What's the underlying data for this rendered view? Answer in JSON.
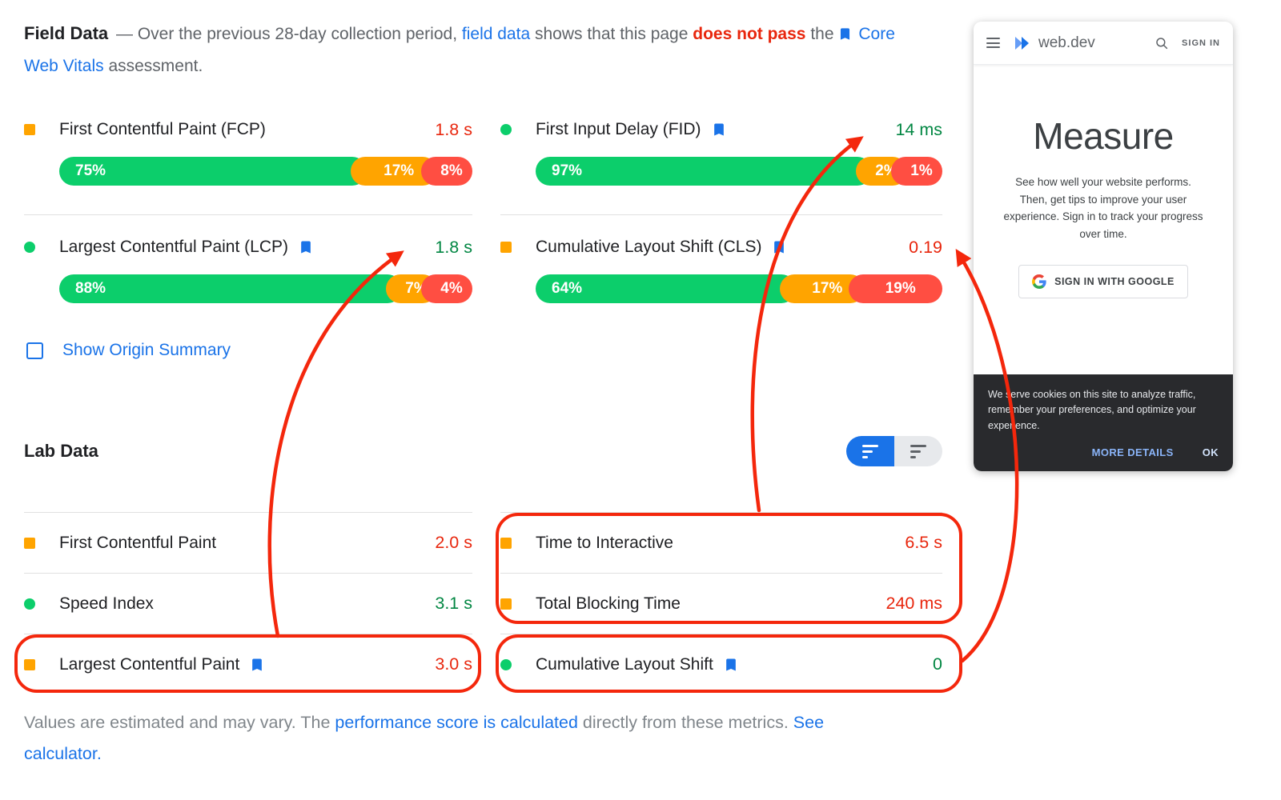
{
  "colors": {
    "red": "#e8260d",
    "orange": "#e8710a",
    "green": "#018642",
    "blue": "#1a73e8",
    "annotation_red": "#f4270c",
    "bar_green": "#0cce6b",
    "bar_orange": "#ffa400",
    "bar_red": "#ff4e42"
  },
  "field_section": {
    "title": "Field Data",
    "desc": {
      "dash": "— Over the previous 28-day collection period,",
      "link1": "field data",
      "mid": "shows that this page",
      "fail": "does not pass",
      "the": "the",
      "link2": "Core Web Vitals",
      "end": "assessment."
    },
    "metrics": [
      {
        "name": "First Contentful Paint (FCP)",
        "icon": "square",
        "bookmark": false,
        "value": "1.8 s",
        "value_color": "red",
        "dist": [
          {
            "label": "75%",
            "pct": 75,
            "color": "green"
          },
          {
            "label": "17%",
            "pct": 17,
            "color": "orange"
          },
          {
            "label": "8%",
            "pct": 8,
            "color": "red"
          }
        ]
      },
      {
        "name": "First Input Delay (FID)",
        "icon": "circle",
        "bookmark": true,
        "value": "14 ms",
        "value_color": "green",
        "dist": [
          {
            "label": "97%",
            "pct": 97,
            "color": "green"
          },
          {
            "label": "2%",
            "pct": 2,
            "color": "orange"
          },
          {
            "label": "1%",
            "pct": 1,
            "color": "red"
          }
        ]
      },
      {
        "name": "Largest Contentful Paint (LCP)",
        "icon": "circle",
        "bookmark": true,
        "value": "1.8 s",
        "value_color": "green",
        "dist": [
          {
            "label": "88%",
            "pct": 88,
            "color": "green"
          },
          {
            "label": "7%",
            "pct": 7,
            "color": "orange"
          },
          {
            "label": "4%",
            "pct": 4,
            "color": "red"
          }
        ]
      },
      {
        "name": "Cumulative Layout Shift (CLS)",
        "icon": "square",
        "bookmark": true,
        "value": "0.19",
        "value_color": "red",
        "dist": [
          {
            "label": "64%",
            "pct": 64,
            "color": "green"
          },
          {
            "label": "17%",
            "pct": 17,
            "color": "orange"
          },
          {
            "label": "19%",
            "pct": 19,
            "color": "red"
          }
        ]
      }
    ],
    "origin_summary_label": "Show Origin Summary"
  },
  "lab_section": {
    "title": "Lab Data",
    "metrics": [
      {
        "name": "First Contentful Paint",
        "icon": "square",
        "bookmark": false,
        "value": "2.0 s",
        "value_color": "red"
      },
      {
        "name": "Time to Interactive",
        "icon": "square",
        "bookmark": false,
        "value": "6.5 s",
        "value_color": "red"
      },
      {
        "name": "Speed Index",
        "icon": "circle",
        "bookmark": false,
        "value": "3.1 s",
        "value_color": "green"
      },
      {
        "name": "Total Blocking Time",
        "icon": "square",
        "bookmark": false,
        "value": "240 ms",
        "value_color": "red"
      },
      {
        "name": "Largest Contentful Paint",
        "icon": "square",
        "bookmark": true,
        "value": "3.0 s",
        "value_color": "red"
      },
      {
        "name": "Cumulative Layout Shift",
        "icon": "circle",
        "bookmark": true,
        "value": "0",
        "value_color": "green"
      }
    ]
  },
  "footer": {
    "text1": "Values are estimated and may vary. The",
    "link1": "performance score is calculated",
    "text2": "directly from these metrics.",
    "link2": "See calculator."
  },
  "phone": {
    "brand": "web.dev",
    "sign_in": "SIGN IN",
    "title": "Measure",
    "subtitle": "See how well your website performs. Then, get tips to improve your user experience. Sign in to track your progress over time.",
    "google_button": "SIGN IN WITH GOOGLE",
    "cookie_text": "We serve cookies on this site to analyze traffic, remember your preferences, and optimize your experience.",
    "more_details": "MORE DETAILS",
    "ok": "OK"
  }
}
